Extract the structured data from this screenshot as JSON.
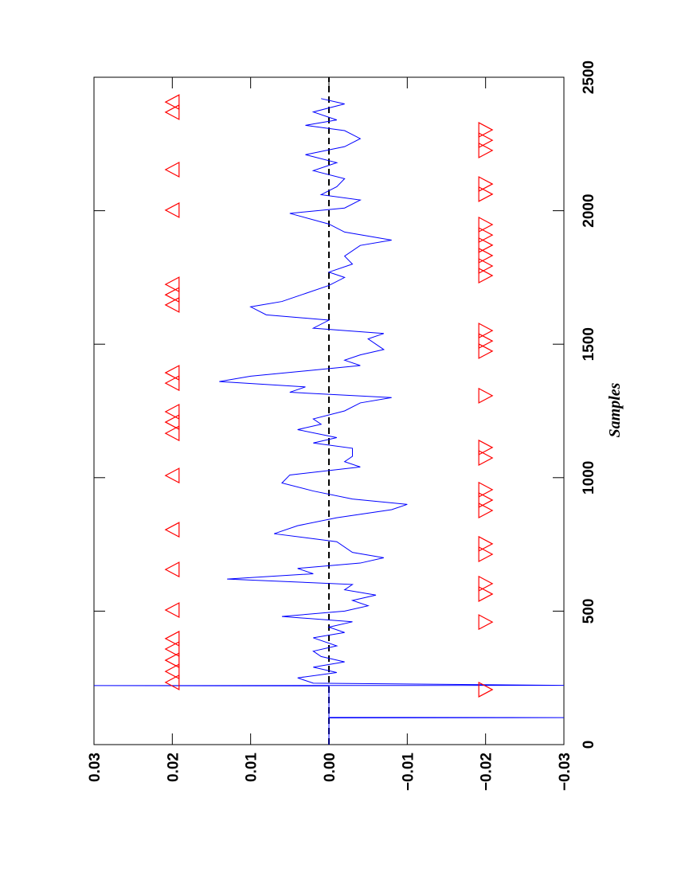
{
  "chart_data": {
    "type": "line",
    "x_label": "Samples",
    "xlim": [
      0,
      2500
    ],
    "xticks": [
      0,
      500,
      1000,
      1500,
      2000,
      2500
    ],
    "ylim": [
      -0.03,
      0.03
    ],
    "yticks": [
      {
        "value": -0.03,
        "label": "−0.03"
      },
      {
        "value": -0.02,
        "label": "−0.02"
      },
      {
        "value": -0.01,
        "label": "−0.01"
      },
      {
        "value": 0,
        "label": "0.00"
      },
      0.01,
      0.02,
      0.03
    ],
    "zero_line": true,
    "series": [
      {
        "color": "#0000ff",
        "x": [
          0,
          100,
          101,
          102,
          220,
          221,
          222,
          230,
          250,
          270,
          290,
          310,
          330,
          350,
          370,
          400,
          420,
          440,
          460,
          480,
          500,
          520,
          540,
          560,
          580,
          600,
          620,
          640,
          660,
          680,
          700,
          720,
          760,
          790,
          820,
          850,
          880,
          900,
          920,
          950,
          980,
          1010,
          1040,
          1060,
          1080,
          1110,
          1130,
          1150,
          1180,
          1200,
          1220,
          1250,
          1280,
          1300,
          1320,
          1340,
          1360,
          1380,
          1400,
          1420,
          1440,
          1460,
          1480,
          1520,
          1540,
          1560,
          1590,
          1610,
          1640,
          1660,
          1690,
          1720,
          1750,
          1770,
          1800,
          1830,
          1870,
          1890,
          1920,
          1950,
          1990,
          2010,
          2040,
          2060,
          2090,
          2120,
          2150,
          2180,
          2210,
          2240,
          2270,
          2300,
          2320,
          2340,
          2370,
          2400,
          2420
        ],
        "values": [
          0,
          0,
          -0.03,
          0,
          0,
          0.03,
          -0.03,
          0.002,
          0.004,
          -0.001,
          0.002,
          -0.002,
          0.001,
          0.002,
          -0.001,
          0.002,
          -0.002,
          0,
          -0.003,
          0.006,
          -0.002,
          -0.005,
          -0.003,
          -0.006,
          -0.002,
          -0.003,
          0.013,
          0.002,
          0.004,
          -0.004,
          -0.007,
          -0.003,
          -0.001,
          0.007,
          0.004,
          -0.001,
          -0.008,
          -0.01,
          -0.003,
          0.002,
          0.006,
          0.005,
          -0.004,
          -0.002,
          -0.003,
          -0.003,
          0.002,
          -0.001,
          0.004,
          0.001,
          0.002,
          -0.002,
          -0.004,
          -0.008,
          0.005,
          0.003,
          0.014,
          0.01,
          0.003,
          -0.004,
          -0.002,
          -0.004,
          -0.007,
          -0.005,
          -0.007,
          0.002,
          0,
          0.008,
          0.01,
          0.006,
          0.003,
          0,
          -0.002,
          0,
          -0.003,
          -0.002,
          -0.004,
          -0.008,
          -0.002,
          0,
          0.005,
          -0.002,
          -0.004,
          0.001,
          -0.001,
          -0.002,
          0.002,
          -0.001,
          0.003,
          -0.002,
          -0.004,
          -0.002,
          0.003,
          -0.001,
          0.002,
          -0.002,
          0.001
        ]
      },
      {
        "color": "#ff0000",
        "marker": "triangle-up",
        "x": [
          233,
          274,
          316,
          358,
          397,
          504,
          656,
          805,
          1008,
          1166,
          1208,
          1247,
          1354,
          1393,
          1647,
          1685,
          1724,
          2002,
          2154,
          2369,
          2407
        ],
        "values": [
          0.02,
          0.02,
          0.02,
          0.02,
          0.02,
          0.02,
          0.02,
          0.02,
          0.02,
          0.02,
          0.02,
          0.02,
          0.02,
          0.02,
          0.02,
          0.02,
          0.02,
          0.02,
          0.02,
          0.02,
          0.02
        ]
      },
      {
        "color": "#ff0000",
        "marker": "triangle-down",
        "x": [
          206,
          459,
          564,
          603,
          713,
          752,
          877,
          916,
          955,
          1074,
          1113,
          1307,
          1474,
          1512,
          1551,
          1757,
          1793,
          1832,
          1871,
          1909,
          1948,
          2062,
          2100,
          2226,
          2264,
          2303
        ],
        "values": [
          -0.02,
          -0.02,
          -0.02,
          -0.02,
          -0.02,
          -0.02,
          -0.02,
          -0.02,
          -0.02,
          -0.02,
          -0.02,
          -0.02,
          -0.02,
          -0.02,
          -0.02,
          -0.02,
          -0.02,
          -0.02,
          -0.02,
          -0.02,
          -0.02,
          -0.02,
          -0.02,
          -0.02,
          -0.02,
          -0.02
        ]
      }
    ]
  }
}
